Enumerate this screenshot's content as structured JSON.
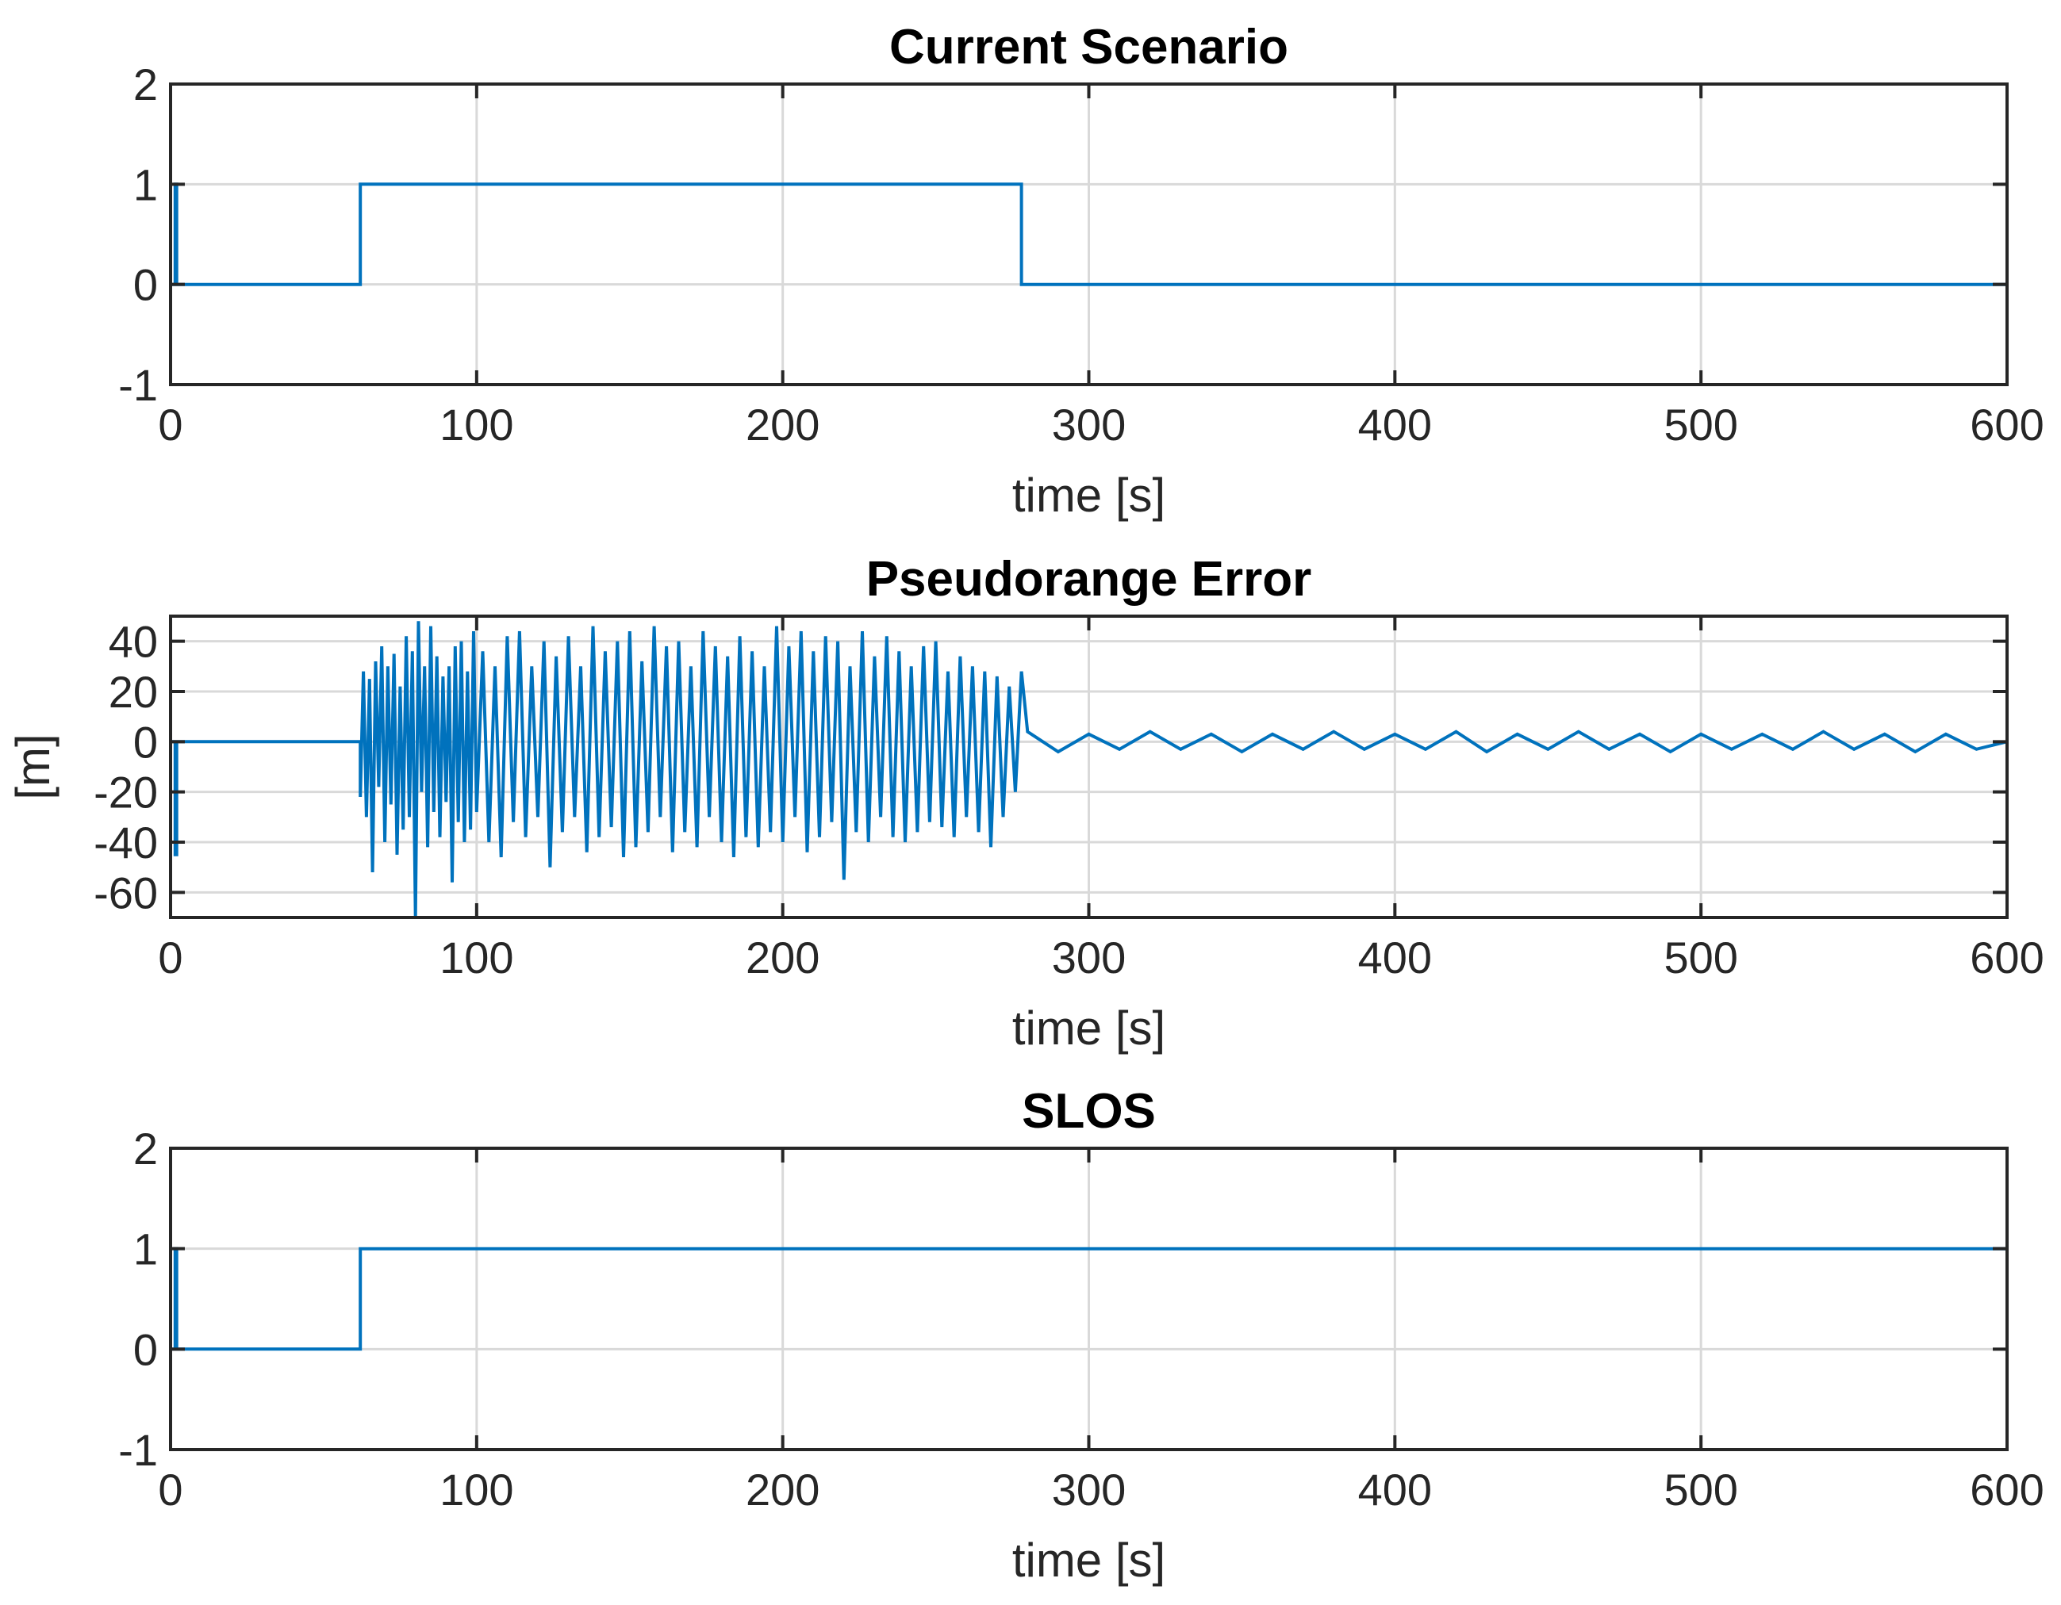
{
  "chart_data": [
    {
      "type": "line",
      "title": "Current Scenario",
      "xlabel": "time [s]",
      "ylabel": "",
      "xlim": [
        0,
        600
      ],
      "ylim": [
        -1,
        2
      ],
      "xticks": [
        0,
        100,
        200,
        300,
        400,
        500,
        600
      ],
      "yticks": [
        -1,
        0,
        1,
        2
      ],
      "grid": true,
      "color": "#0072BD",
      "series": [
        {
          "x": [
            0,
            1.5,
            1.5,
            2,
            2,
            62,
            62,
            278,
            278,
            600
          ],
          "y": [
            0,
            0,
            1,
            1,
            0,
            0,
            1,
            1,
            0,
            0
          ]
        }
      ]
    },
    {
      "type": "line",
      "title": "Pseudorange Error",
      "xlabel": "time [s]",
      "ylabel": "[m]",
      "xlim": [
        0,
        600
      ],
      "ylim": [
        -70,
        50
      ],
      "xticks": [
        0,
        100,
        200,
        300,
        400,
        500,
        600
      ],
      "yticks": [
        -60,
        -40,
        -20,
        0,
        20,
        40
      ],
      "grid": true,
      "color": "#0072BD",
      "series": [
        {
          "x": [
            0,
            1.5,
            1.5,
            2,
            2,
            62,
            62,
            63,
            64,
            65,
            66,
            67,
            68,
            69,
            70,
            71,
            72,
            73,
            74,
            75,
            76,
            77,
            78,
            79,
            80,
            81,
            82,
            83,
            84,
            85,
            86,
            87,
            88,
            89,
            90,
            91,
            92,
            93,
            94,
            95,
            96,
            97,
            98,
            99,
            100,
            102,
            104,
            106,
            108,
            110,
            112,
            114,
            116,
            118,
            120,
            122,
            124,
            126,
            128,
            130,
            132,
            134,
            136,
            138,
            140,
            142,
            144,
            146,
            148,
            150,
            152,
            154,
            156,
            158,
            160,
            162,
            164,
            166,
            168,
            170,
            172,
            174,
            176,
            178,
            180,
            182,
            184,
            186,
            188,
            190,
            192,
            194,
            196,
            198,
            200,
            202,
            204,
            206,
            208,
            210,
            212,
            214,
            216,
            218,
            220,
            222,
            224,
            226,
            228,
            230,
            232,
            234,
            236,
            238,
            240,
            242,
            244,
            246,
            248,
            250,
            252,
            254,
            256,
            258,
            260,
            262,
            264,
            266,
            268,
            270,
            272,
            274,
            276,
            278,
            280,
            290,
            300,
            310,
            320,
            330,
            340,
            350,
            360,
            370,
            380,
            390,
            400,
            410,
            420,
            430,
            440,
            450,
            460,
            470,
            480,
            490,
            500,
            510,
            520,
            530,
            540,
            550,
            560,
            570,
            580,
            590,
            600
          ],
          "y": [
            0,
            0,
            -45,
            -45,
            0,
            0,
            -22,
            28,
            -30,
            25,
            -52,
            32,
            -18,
            38,
            -40,
            30,
            -25,
            35,
            -45,
            22,
            -35,
            42,
            -30,
            36,
            -70,
            48,
            -20,
            30,
            -42,
            46,
            -28,
            34,
            -38,
            26,
            -24,
            30,
            -56,
            38,
            -32,
            40,
            -40,
            28,
            -35,
            44,
            -28,
            36,
            -40,
            30,
            -46,
            42,
            -32,
            44,
            -38,
            30,
            -30,
            40,
            -50,
            34,
            -36,
            42,
            -30,
            30,
            -44,
            46,
            -38,
            36,
            -34,
            40,
            -46,
            44,
            -42,
            32,
            -36,
            46,
            -30,
            38,
            -44,
            40,
            -36,
            30,
            -42,
            44,
            -30,
            38,
            -40,
            34,
            -46,
            42,
            -38,
            36,
            -42,
            30,
            -36,
            46,
            -40,
            38,
            -30,
            44,
            -44,
            36,
            -38,
            42,
            -32,
            40,
            -55,
            30,
            -36,
            44,
            -40,
            34,
            -30,
            42,
            -38,
            36,
            -40,
            30,
            -36,
            38,
            -32,
            40,
            -34,
            28,
            -38,
            34,
            -30,
            30,
            -36,
            28,
            -42,
            26,
            -30,
            22,
            -20,
            28,
            4,
            -4,
            3,
            -3,
            4,
            -3,
            3,
            -4,
            3,
            -3,
            4,
            -3,
            3,
            -3,
            4,
            -4,
            3,
            -3,
            4,
            -3,
            3,
            -4,
            3,
            -3,
            3,
            -3,
            4,
            -3,
            3,
            -4,
            3,
            -3,
            0
          ]
        }
      ]
    },
    {
      "type": "line",
      "title": "SLOS",
      "xlabel": "time [s]",
      "ylabel": "",
      "xlim": [
        0,
        600
      ],
      "ylim": [
        -1,
        2
      ],
      "xticks": [
        0,
        100,
        200,
        300,
        400,
        500,
        600
      ],
      "yticks": [
        -1,
        0,
        1,
        2
      ],
      "grid": true,
      "color": "#0072BD",
      "series": [
        {
          "x": [
            0,
            1.5,
            1.5,
            2,
            2,
            62,
            62,
            600
          ],
          "y": [
            0,
            0,
            1,
            1,
            0,
            0,
            1,
            1
          ]
        }
      ]
    }
  ]
}
